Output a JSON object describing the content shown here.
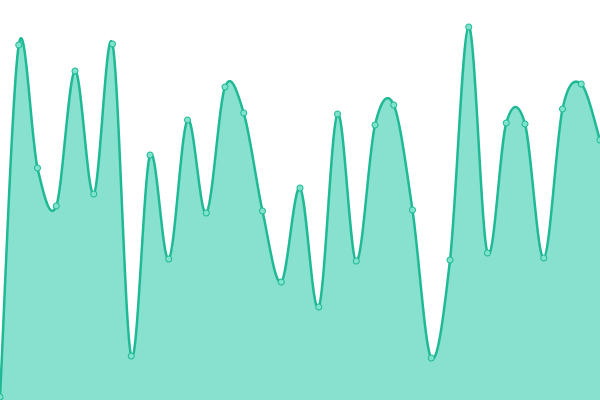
{
  "chart_data": {
    "type": "area",
    "categories": [
      null,
      null,
      null,
      null,
      null,
      null,
      null,
      null,
      null,
      null,
      null,
      null,
      null,
      null,
      null,
      null,
      null,
      null,
      null,
      null,
      null,
      null,
      null,
      null,
      null,
      null,
      null,
      null,
      null,
      null,
      null,
      null,
      null
    ],
    "values": [
      3,
      355,
      232,
      194,
      329,
      206,
      356,
      44,
      245,
      141,
      280,
      187,
      313,
      287,
      189,
      118,
      212,
      93,
      286,
      139,
      275,
      295,
      190,
      42,
      140,
      373,
      147,
      277,
      276,
      142,
      291,
      316,
      260
    ],
    "ylim": [
      0,
      400
    ],
    "color": "#1fb995",
    "fill": "#88e0cf",
    "marker_fill": "#7fe2cd"
  }
}
